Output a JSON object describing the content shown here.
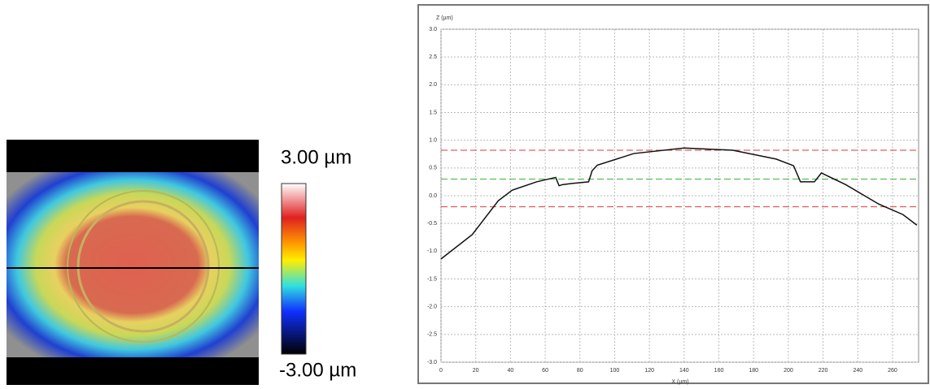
{
  "height_map": {
    "max_label": "3.00 µm",
    "min_label": "-3.00 µm"
  },
  "chart_data": {
    "type": "line",
    "x_label": "X (µm)",
    "y_label": "Z (µm)",
    "xlim": [
      0,
      275
    ],
    "ylim": [
      -3,
      3
    ],
    "xticks": [
      0,
      20,
      40,
      60,
      80,
      100,
      120,
      140,
      160,
      180,
      200,
      220,
      240,
      260
    ],
    "yticks": [
      {
        "value": 3,
        "label": "3.0"
      },
      2.5,
      {
        "value": 2,
        "label": "2.0"
      },
      1.5,
      {
        "value": 1,
        "label": "1.0"
      },
      0.5,
      {
        "value": 0,
        "label": "0.0"
      },
      -0.5,
      {
        "value": -1,
        "label": "-1.0"
      },
      -1.5,
      {
        "value": -2,
        "label": "-2.0"
      },
      -2.5,
      {
        "value": -3,
        "label": "-3.0"
      }
    ],
    "grid": true,
    "reference_lines": [
      {
        "value": 0.82,
        "color": "#e03a3a"
      },
      {
        "value": 0.3,
        "color": "#3cb43c"
      },
      {
        "value": -0.2,
        "color": "#e03a3a"
      }
    ],
    "series": [
      {
        "color": "#111111",
        "x": [
          0,
          18,
          33,
          41,
          55,
          66,
          68,
          70,
          75,
          85,
          87,
          90,
          111,
          140,
          168,
          193,
          203,
          207,
          215,
          219,
          233,
          252,
          266,
          274
        ],
        "values": [
          -1.14,
          -0.7,
          -0.09,
          0.1,
          0.25,
          0.33,
          0.18,
          0.2,
          0.22,
          0.25,
          0.45,
          0.55,
          0.76,
          0.86,
          0.82,
          0.66,
          0.54,
          0.25,
          0.25,
          0.41,
          0.2,
          -0.15,
          -0.34,
          -0.53
        ]
      }
    ]
  }
}
